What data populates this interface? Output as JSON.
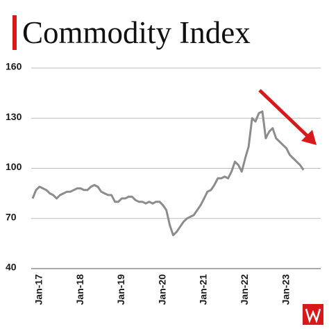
{
  "chart_data": {
    "type": "line",
    "title": "Commodity Index",
    "categories": [
      null,
      null,
      "Jan-17",
      null,
      null,
      null,
      null,
      null,
      null,
      null,
      null,
      null,
      null,
      null,
      "Jan-18",
      null,
      null,
      null,
      null,
      null,
      null,
      null,
      null,
      null,
      null,
      null,
      "Jan-19",
      null,
      null,
      null,
      null,
      null,
      null,
      null,
      null,
      null,
      null,
      null,
      "Jan-20",
      null,
      null,
      null,
      null,
      null,
      null,
      null,
      null,
      null,
      null,
      null,
      "Jan-21",
      null,
      null,
      null,
      null,
      null,
      null,
      null,
      null,
      null,
      null,
      null,
      "Jan-22",
      null,
      null,
      null,
      null,
      null,
      null,
      null,
      null,
      null,
      null,
      null,
      "Jan-23",
      null,
      null,
      null,
      null,
      null
    ],
    "series": [
      {
        "color": "#8c8c8c",
        "values": [
          82,
          87,
          89,
          88,
          87,
          85,
          84,
          82,
          84,
          85,
          86,
          86,
          87,
          88,
          88,
          87,
          87,
          89,
          90,
          89,
          86,
          85,
          84,
          84,
          80,
          80,
          82,
          82,
          83,
          83,
          81,
          80,
          80,
          79,
          80,
          79,
          80,
          80,
          78,
          75,
          66,
          60,
          62,
          65,
          68,
          70,
          71,
          72,
          75,
          78,
          82,
          86,
          87,
          90,
          94,
          94,
          95,
          94,
          98,
          104,
          102,
          98,
          106,
          113,
          130,
          128,
          133,
          134,
          118,
          122,
          124,
          118,
          116,
          114,
          112,
          108,
          106,
          104,
          102,
          99
        ]
      }
    ],
    "ylim": [
      40,
      160
    ],
    "yticks": [
      40,
      70,
      100,
      130,
      160
    ],
    "grid": true
  }
}
